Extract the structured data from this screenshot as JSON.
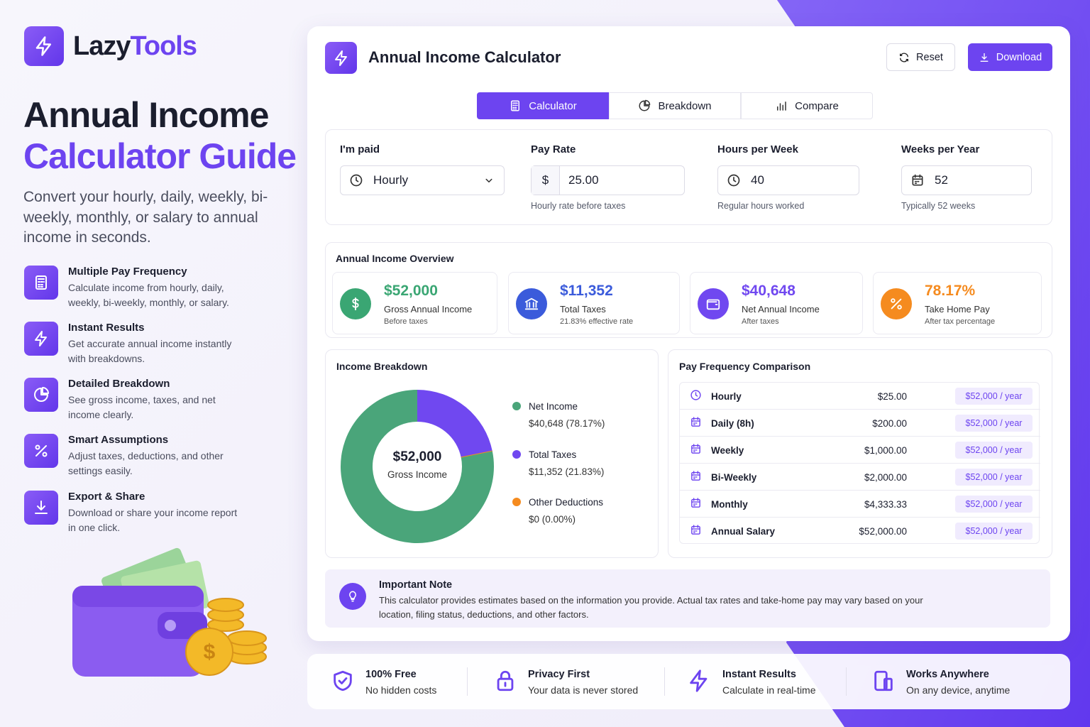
{
  "brand": {
    "name_first": "Lazy",
    "name_second": "Tools"
  },
  "hero": {
    "title_line1": "Annual Income",
    "title_line2": "Calculator Guide",
    "subtitle": "Convert your hourly, daily, weekly, bi-weekly, monthly, or salary to annual income in seconds."
  },
  "features": [
    {
      "title": "Multiple Pay Frequency",
      "desc": "Calculate income from hourly, daily, weekly, bi-weekly, monthly, or salary."
    },
    {
      "title": "Instant Results",
      "desc": "Get accurate annual income instantly with breakdowns."
    },
    {
      "title": "Detailed Breakdown",
      "desc": "See gross income, taxes, and net income clearly."
    },
    {
      "title": "Smart Assumptions",
      "desc": "Adjust taxes, deductions, and other settings easily."
    },
    {
      "title": "Export & Share",
      "desc": "Download or share your income report in one click."
    }
  ],
  "header": {
    "title": "Annual Income Calculator",
    "reset": "Reset",
    "download": "Download"
  },
  "tabs": [
    "Calculator",
    "Breakdown",
    "Compare"
  ],
  "inputs": [
    {
      "label": "I'm paid",
      "value": "Hourly"
    },
    {
      "label": "Pay Rate",
      "prefix": "$",
      "value": "25.00",
      "help": "Hourly rate before taxes"
    },
    {
      "label": "Hours per Week",
      "value": "40",
      "help": "Regular hours worked"
    },
    {
      "label": "Weeks per Year",
      "value": "52",
      "help": "Typically 52 weeks"
    }
  ],
  "overview": {
    "title": "Annual Income Overview",
    "cards": [
      {
        "value": "$52,000",
        "label": "Gross Annual Income",
        "sub": "Before taxes"
      },
      {
        "value": "$11,352",
        "label": "Total Taxes",
        "sub": "21.83% effective rate"
      },
      {
        "value": "$40,648",
        "label": "Net Annual Income",
        "sub": "After taxes"
      },
      {
        "value": "78.17%",
        "label": "Take Home Pay",
        "sub": "After tax percentage"
      }
    ]
  },
  "breakdown": {
    "title": "Income Breakdown",
    "center_value": "$52,000",
    "center_label": "Gross Income",
    "segments": [
      {
        "name": "Net Income",
        "label": "$40,648 (78.17%)",
        "value": 78.17,
        "color": "#4aa57a"
      },
      {
        "name": "Total Taxes",
        "label": "$11,352 (21.83%)",
        "value": 21.83,
        "color": "#7048f0"
      },
      {
        "name": "Other Deductions",
        "label": "$0 (0.00%)",
        "value": 0,
        "color": "#f58b1f"
      }
    ]
  },
  "comparison": {
    "title": "Pay Frequency Comparison",
    "rows": [
      {
        "name": "Hourly",
        "amount": "$25.00",
        "annual": "$52,000 / year"
      },
      {
        "name": "Daily (8h)",
        "amount": "$200.00",
        "annual": "$52,000 / year"
      },
      {
        "name": "Weekly",
        "amount": "$1,000.00",
        "annual": "$52,000 / year"
      },
      {
        "name": "Bi-Weekly",
        "amount": "$2,000.00",
        "annual": "$52,000 / year"
      },
      {
        "name": "Monthly",
        "amount": "$4,333.33",
        "annual": "$52,000 / year"
      },
      {
        "name": "Annual Salary",
        "amount": "$52,000.00",
        "annual": "$52,000 / year"
      }
    ]
  },
  "note": {
    "title": "Important Note",
    "text": "This calculator provides estimates based on the information you provide. Actual tax rates and take-home pay may vary based on your location, filing status, deductions, and other factors."
  },
  "footer": [
    {
      "title": "100% Free",
      "sub": "No hidden costs"
    },
    {
      "title": "Privacy First",
      "sub": "Your data is never stored"
    },
    {
      "title": "Instant Results",
      "sub": "Calculate in real-time"
    },
    {
      "title": "Works Anywhere",
      "sub": "On any device, anytime"
    }
  ]
}
